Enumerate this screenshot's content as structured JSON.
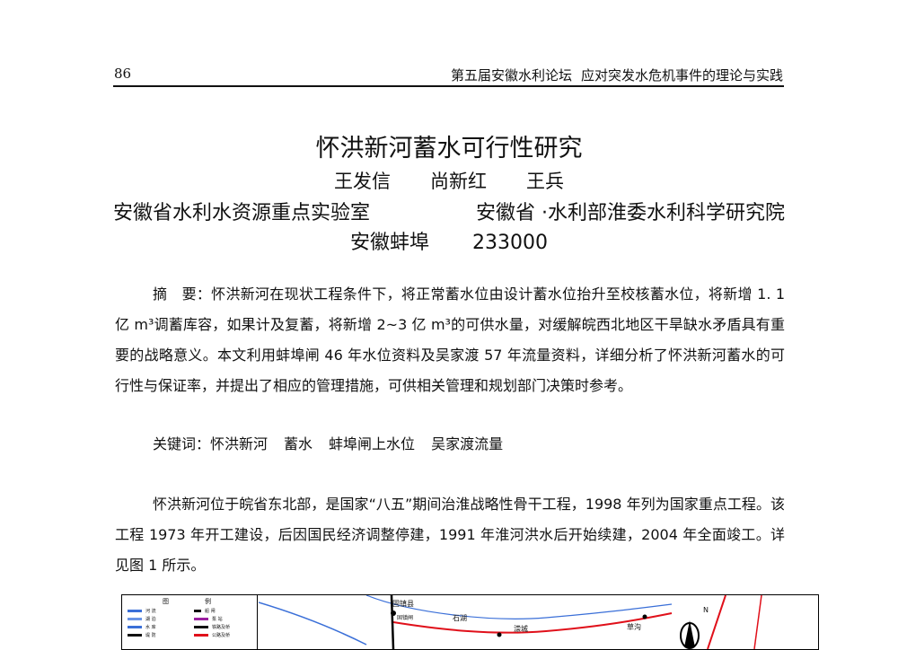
{
  "header": {
    "page_number": "86",
    "running_head_left": "第五届安徽水利论坛",
    "running_head_right": "应对突发水危机事件的理论与实践"
  },
  "article": {
    "title": "怀洪新河蓄水可行性研究",
    "authors": [
      "王发信",
      "尚新红",
      "王兵"
    ],
    "affiliation_1": "安徽省水利水资源重点实验室",
    "affiliation_2": "安徽省 ·水利部淮委水利科学研究院",
    "city": "安徽蚌埠",
    "postcode": "233000"
  },
  "abstract": {
    "text": "摘　要：怀洪新河在现状工程条件下，将正常蓄水位由设计蓄水位抬升至校核蓄水位，将新增 1. 1 亿 m³调蓄库容，如果计及复蓄，将新增 2~3 亿 m³的可供水量，对缓解皖西北地区干旱缺水矛盾具有重要的战略意义。本文利用蚌埠闸 46 年水位资料及吴家渡 57 年流量资料，详细分析了怀洪新河蓄水的可行性与保证率，并提出了相应的管理措施，可供相关管理和规划部门决策时参考。"
  },
  "keywords": {
    "label": "关键词：",
    "items": [
      "怀洪新河",
      "蓄水",
      "蚌埠闸上水位",
      "吴家渡流量"
    ]
  },
  "body": {
    "paragraph_1": "怀洪新河位于皖省东北部，是国家“八五”期间治淮战略性骨干工程，1998 年列为国家重点工程。该工程 1973 年开工建设，后因国民经济调整停建，1991 年淮河洪水后开始续建，2004 年全面竣工。详见图 1 所示。"
  },
  "figure": {
    "legend_title": [
      "图",
      "例"
    ],
    "legend_items": [
      "河 流",
      "湖 泊",
      "水 库",
      "堤 防",
      "船 闸",
      "泵 站",
      "铁路及桥",
      "公路及桥"
    ],
    "place_labels": [
      "固镇县",
      "固镇闸",
      "石湖",
      "漴城",
      "草沟"
    ],
    "north_label": "N",
    "colors": {
      "river": "#3a6fd8",
      "road": "#e0101a",
      "black": "#000000"
    }
  }
}
